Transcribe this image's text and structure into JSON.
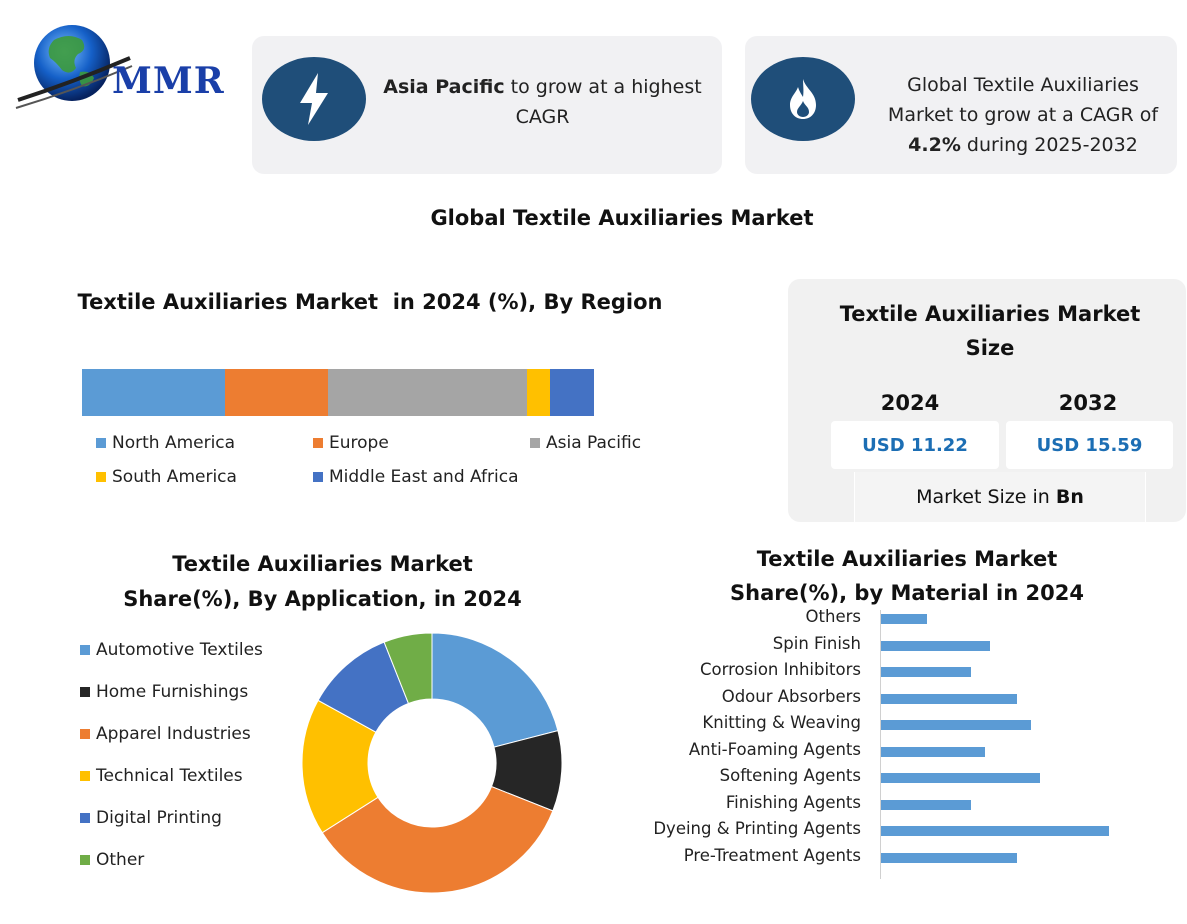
{
  "logo": {
    "text": "MMR"
  },
  "cards": {
    "region": {
      "highlight": "Asia Pacific",
      "rest_line1": " to grow at a highest",
      "line2": "CAGR"
    },
    "cagr": {
      "line1": "Global Textile Auxiliaries",
      "line2": "Market to grow at a CAGR of",
      "cagr": "4.2%",
      "line3_rest": " during 2025-2032"
    }
  },
  "main_title": "Global Textile Auxiliaries Market",
  "market_size": {
    "title_line1": "Textile Auxiliaries Market",
    "title_line2": "Size",
    "year1": "2024",
    "year2": "2032",
    "value1": "USD 11.22",
    "value2": "USD 15.59",
    "unit_prefix": "Market Size in ",
    "unit": "Bn"
  },
  "colors": {
    "dark_blue": "#1f4e79",
    "light_blue": "#5b9bd5",
    "orange": "#ed7d31",
    "gray": "#a5a5a5",
    "yellow": "#ffc000",
    "blue": "#4472c4",
    "black": "#262626",
    "green": "#70ad47"
  },
  "chart_data": [
    {
      "type": "bar",
      "orientation": "stacked-horizontal",
      "title": "Textile Auxiliaries Market  in 2024 (%), By Region",
      "series": [
        {
          "name": "North America",
          "value": 28,
          "color": "#5b9bd5"
        },
        {
          "name": "Europe",
          "value": 20,
          "color": "#ed7d31"
        },
        {
          "name": "Asia Pacific",
          "value": 39,
          "color": "#a5a5a5"
        },
        {
          "name": "South America",
          "value": 4.5,
          "color": "#ffc000"
        },
        {
          "name": "Middle East and Africa",
          "value": 8.5,
          "color": "#4472c4"
        }
      ],
      "legend": "bottom"
    },
    {
      "type": "pie",
      "variant": "donut",
      "title_line1": "Textile Auxiliaries Market",
      "title_line2": "Share(%), By Application, in 2024",
      "categories": [
        "Automotive Textiles",
        "Home Furnishings",
        "Apparel Industries",
        "Technical Textiles",
        "Digital Printing",
        "Other"
      ],
      "values": [
        21,
        10,
        35,
        17,
        11,
        6
      ],
      "colors": [
        "#5b9bd5",
        "#262626",
        "#ed7d31",
        "#ffc000",
        "#4472c4",
        "#70ad47"
      ],
      "legend": "left"
    },
    {
      "type": "bar",
      "orientation": "horizontal",
      "title_line1": "Textile Auxiliaries Market",
      "title_line2": "Share(%), by Material in 2024",
      "categories": [
        "Others",
        "Spin Finish",
        "Corrosion Inhibitors",
        "Odour Absorbers",
        "Knitting & Weaving",
        "Anti-Foaming Agents",
        "Softening Agents",
        "Finishing Agents",
        "Dyeing & Printing Agents",
        "Pre-Treatment Agents"
      ],
      "values": [
        4,
        9.5,
        7.8,
        11.8,
        13,
        9,
        13.8,
        7.8,
        19.8,
        11.8
      ],
      "color": "#5b9bd5"
    }
  ]
}
